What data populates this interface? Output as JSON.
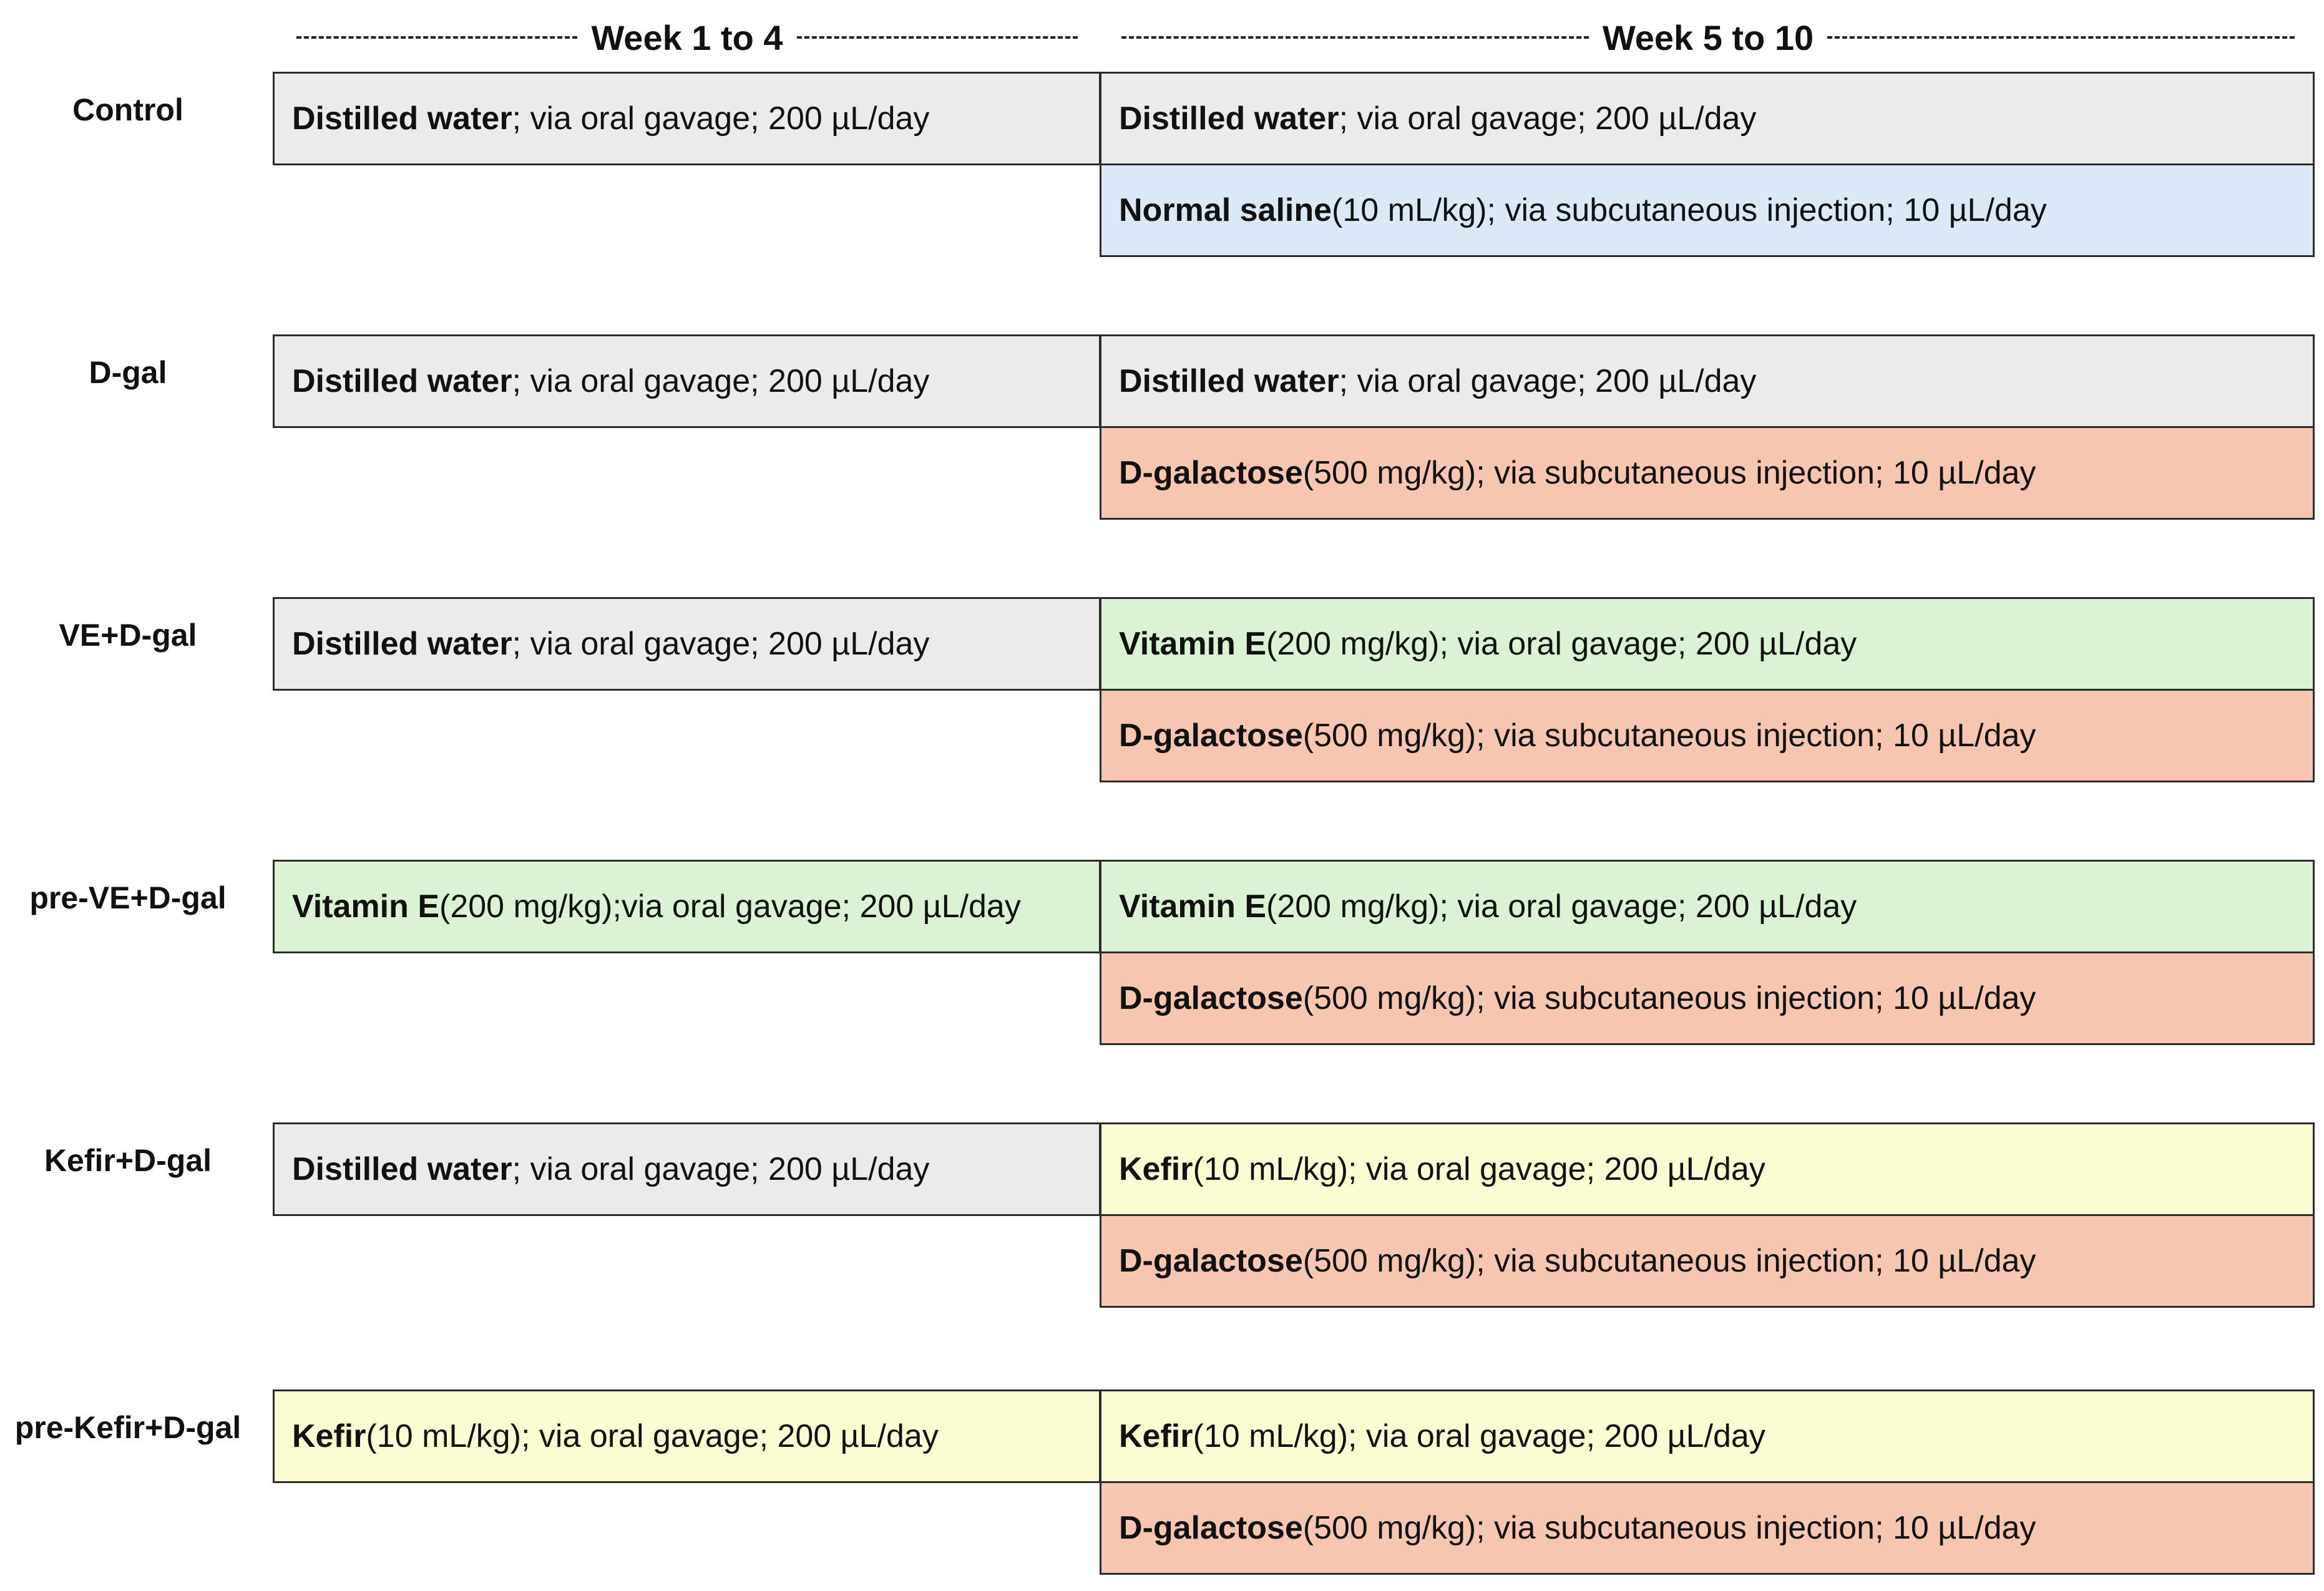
{
  "headers": {
    "phase1": "Week 1 to 4",
    "phase2": "Week 5 to 10"
  },
  "colors": {
    "distilled_water": "#ebebeb",
    "normal_saline": "#dbe9f6",
    "d_galactose": "#f7c6b1",
    "vitamin_e": "#dcf2d4",
    "kefir": "#fcfcd3",
    "border": "#2b2b2b"
  },
  "groups": [
    {
      "label": "Control",
      "week1_4": {
        "substance": "Distilled water",
        "detail": "; via oral gavage; 200 µL/day"
      },
      "week5_10_top": {
        "substance": "Distilled water",
        "detail": "; via oral gavage; 200 µL/day"
      },
      "week5_10_bottom": {
        "substance": "Normal saline",
        "detail": " (10 mL/kg); via subcutaneous injection; 10 µL/day"
      }
    },
    {
      "label": "D-gal",
      "week1_4": {
        "substance": "Distilled water",
        "detail": "; via oral gavage; 200 µL/day"
      },
      "week5_10_top": {
        "substance": "Distilled water",
        "detail": "; via oral gavage; 200 µL/day"
      },
      "week5_10_bottom": {
        "substance": "D-galactose",
        "detail": " (500 mg/kg); via subcutaneous injection; 10 µL/day"
      }
    },
    {
      "label": "VE+D-gal",
      "week1_4": {
        "substance": "Distilled water",
        "detail": "; via oral gavage; 200 µL/day"
      },
      "week5_10_top": {
        "substance": "Vitamin E",
        "detail": " (200 mg/kg); via oral gavage; 200 µL/day"
      },
      "week5_10_bottom": {
        "substance": "D-galactose",
        "detail": " (500 mg/kg); via subcutaneous injection; 10 µL/day"
      }
    },
    {
      "label": "pre-VE+D-gal",
      "week1_4": {
        "substance": "Vitamin E",
        "detail": " (200 mg/kg);via oral gavage; 200 µL/day"
      },
      "week5_10_top": {
        "substance": "Vitamin E",
        "detail": " (200 mg/kg); via oral gavage; 200 µL/day"
      },
      "week5_10_bottom": {
        "substance": "D-galactose",
        "detail": " (500 mg/kg); via subcutaneous injection; 10 µL/day"
      }
    },
    {
      "label": "Kefir+D-gal",
      "week1_4": {
        "substance": "Distilled water",
        "detail": "; via oral gavage; 200 µL/day"
      },
      "week5_10_top": {
        "substance": "Kefir",
        "detail": " (10 mL/kg); via oral gavage; 200 µL/day"
      },
      "week5_10_bottom": {
        "substance": "D-galactose",
        "detail": " (500 mg/kg); via subcutaneous injection; 10 µL/day"
      }
    },
    {
      "label": "pre-Kefir+D-gal",
      "week1_4": {
        "substance": "Kefir",
        "detail": " (10 mL/kg); via oral gavage; 200 µL/day"
      },
      "week5_10_top": {
        "substance": "Kefir",
        "detail": " (10 mL/kg); via oral gavage; 200 µL/day"
      },
      "week5_10_bottom": {
        "substance": "D-galactose",
        "detail": " (500 mg/kg); via subcutaneous injection; 10 µL/day"
      }
    }
  ]
}
